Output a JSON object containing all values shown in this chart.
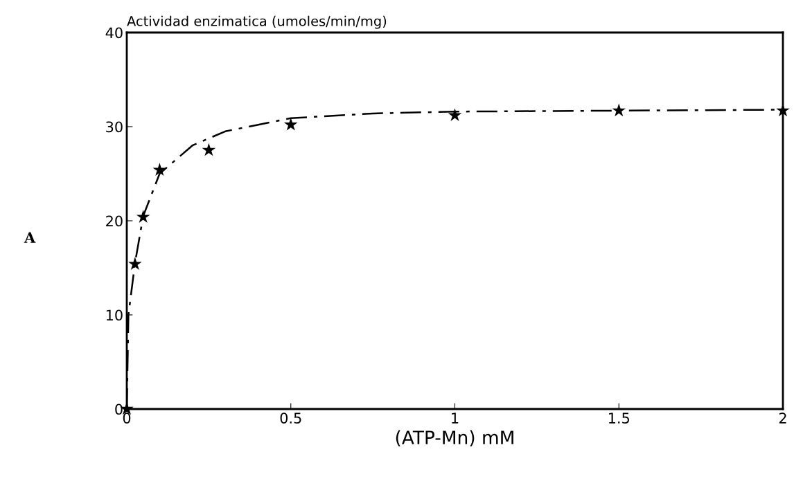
{
  "chart_data": {
    "type": "line",
    "ylabel": "Actividad enzimatica (umoles/min/mg)",
    "xlabel": "(ATP-Mn) mM",
    "annotations": [
      "A"
    ],
    "xlim": [
      0,
      2
    ],
    "xticks": [
      0,
      0.5,
      1,
      1.5,
      2
    ],
    "ylim": [
      0,
      40
    ],
    "yticks": [
      0,
      10,
      20,
      30,
      40
    ],
    "grid": false,
    "legend": false,
    "series": [
      {
        "color": "#000000",
        "marker": "none",
        "line_style": "dashed",
        "x": [
          0,
          0.005,
          0.025,
          0.05,
          0.1,
          0.2,
          0.3,
          0.5,
          0.75,
          1,
          1.5,
          2
        ],
        "values": [
          0,
          10,
          15.5,
          20.5,
          25,
          28,
          29.5,
          30.9,
          31.4,
          31.6,
          31.7,
          31.8
        ]
      },
      {
        "type": "scatter",
        "color": "#000000",
        "marker": "star",
        "x": [
          0,
          0.025,
          0.05,
          0.1,
          0.25,
          0.5,
          1,
          1.5,
          2
        ],
        "values": [
          0,
          15.4,
          20.4,
          25.4,
          27.5,
          30.2,
          31.2,
          31.7,
          31.7
        ]
      }
    ]
  }
}
